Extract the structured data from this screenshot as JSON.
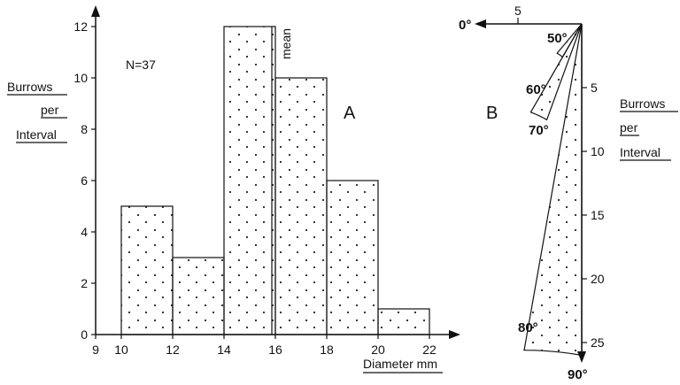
{
  "chart_data": [
    {
      "type": "bar",
      "panel_label": "A",
      "annotation": "N=37",
      "mean_label": "mean",
      "mean_value": 16,
      "ylabel": [
        "Burrows",
        "per",
        "Interval"
      ],
      "xlabel": "Diameter mm",
      "x_ticks": [
        "9",
        "10",
        "12",
        "14",
        "16",
        "18",
        "20",
        "22"
      ],
      "y_ticks": [
        "0",
        "2",
        "4",
        "6",
        "8",
        "10",
        "12"
      ],
      "ylim": [
        0,
        12
      ],
      "bins": [
        {
          "from": 10,
          "to": 12,
          "value": 5
        },
        {
          "from": 12,
          "to": 14,
          "value": 3
        },
        {
          "from": 14,
          "to": 16,
          "value": 12
        },
        {
          "from": 16,
          "to": 18,
          "value": 10
        },
        {
          "from": 18,
          "to": 20,
          "value": 6
        },
        {
          "from": 20,
          "to": 22,
          "value": 1
        }
      ]
    },
    {
      "type": "rose",
      "panel_label": "B",
      "ylabel": [
        "Burrows",
        "per",
        "Interval"
      ],
      "radial_ticks": [
        "5",
        "10",
        "15",
        "20",
        "25"
      ],
      "horizontal_tick": "5",
      "angle_labels": [
        "0°",
        "50°",
        "60°",
        "70°",
        "80°",
        "90°"
      ],
      "sectors": [
        {
          "from_deg": 50,
          "to_deg": 60,
          "value": 3
        },
        {
          "from_deg": 60,
          "to_deg": 70,
          "value": 8
        },
        {
          "from_deg": 80,
          "to_deg": 90,
          "value": 26
        }
      ]
    }
  ]
}
